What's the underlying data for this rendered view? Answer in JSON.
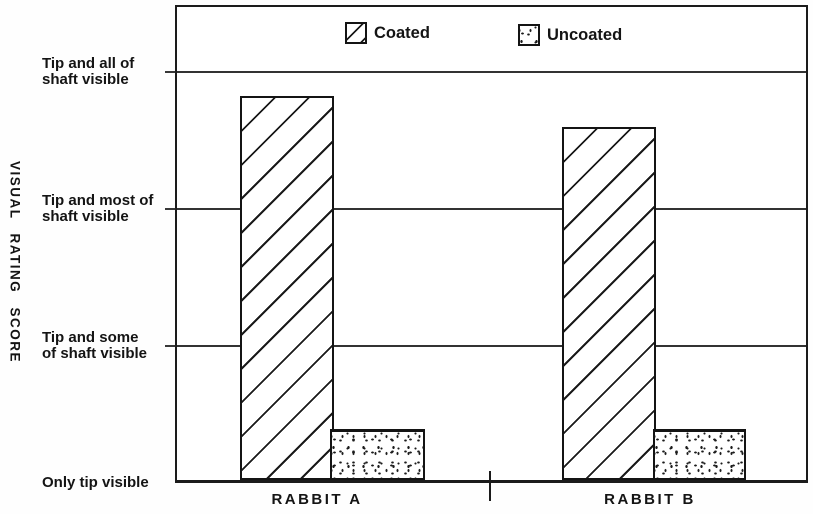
{
  "figure": {
    "y_axis_title": "VISUAL RATING SCORE",
    "y_ticks": [
      {
        "score": 3,
        "label": "Tip and all of\nshaft visible"
      },
      {
        "score": 2,
        "label": "Tip and most of\nshaft visible"
      },
      {
        "score": 1,
        "label": "Tip and some\nof shaft visible"
      },
      {
        "score": 0,
        "label": "Only tip visible"
      }
    ]
  },
  "chart_data": {
    "type": "bar",
    "title": "",
    "categories": [
      "RABBIT A",
      "RABBIT B"
    ],
    "series": [
      {
        "name": "Coated",
        "pattern": "diagonal-hatch",
        "values": [
          2.8,
          2.58
        ]
      },
      {
        "name": "Uncoated",
        "pattern": "stipple",
        "values": [
          0.37,
          0.37
        ]
      }
    ],
    "xlabel": "",
    "ylabel": "VISUAL RATING SCORE",
    "y_scale_labels": [
      "Only tip visible",
      "Tip and some of shaft visible",
      "Tip and most of shaft visible",
      "Tip and all of shaft visible"
    ],
    "ylim": [
      0,
      3.5
    ],
    "grid": "horizontal",
    "legend_position": "top-inside",
    "colors": {
      "ink": "#1a1a1a",
      "paper": "#ffffff"
    }
  }
}
